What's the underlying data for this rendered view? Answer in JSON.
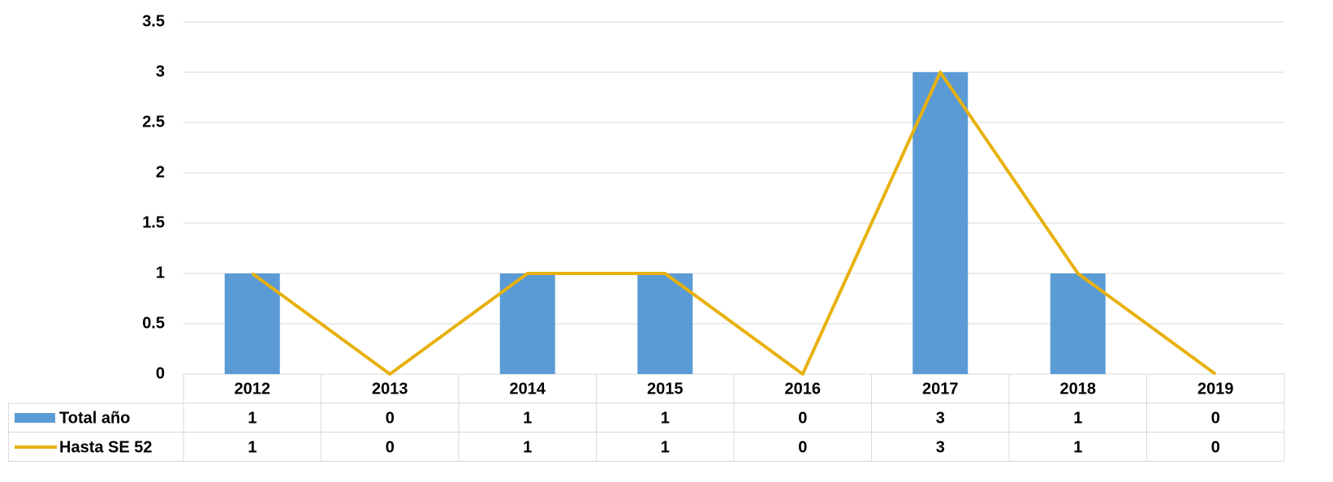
{
  "chart_data": {
    "type": "bar_line",
    "categories": [
      "2012",
      "2013",
      "2014",
      "2015",
      "2016",
      "2017",
      "2018",
      "2019"
    ],
    "series": [
      {
        "name": "Total año",
        "type": "bar",
        "color": "#5b9bd5",
        "values": [
          1,
          0,
          1,
          1,
          0,
          3,
          1,
          0
        ]
      },
      {
        "name": "Hasta SE 52",
        "type": "line",
        "color": "#e8b10e",
        "values": [
          1,
          0,
          1,
          1,
          0,
          3,
          1,
          0
        ]
      }
    ],
    "ylim": [
      0,
      3.5
    ],
    "yticks": [
      0,
      0.5,
      1,
      1.5,
      2,
      2.5,
      3,
      3.5
    ],
    "grid": true,
    "data_table": true
  }
}
